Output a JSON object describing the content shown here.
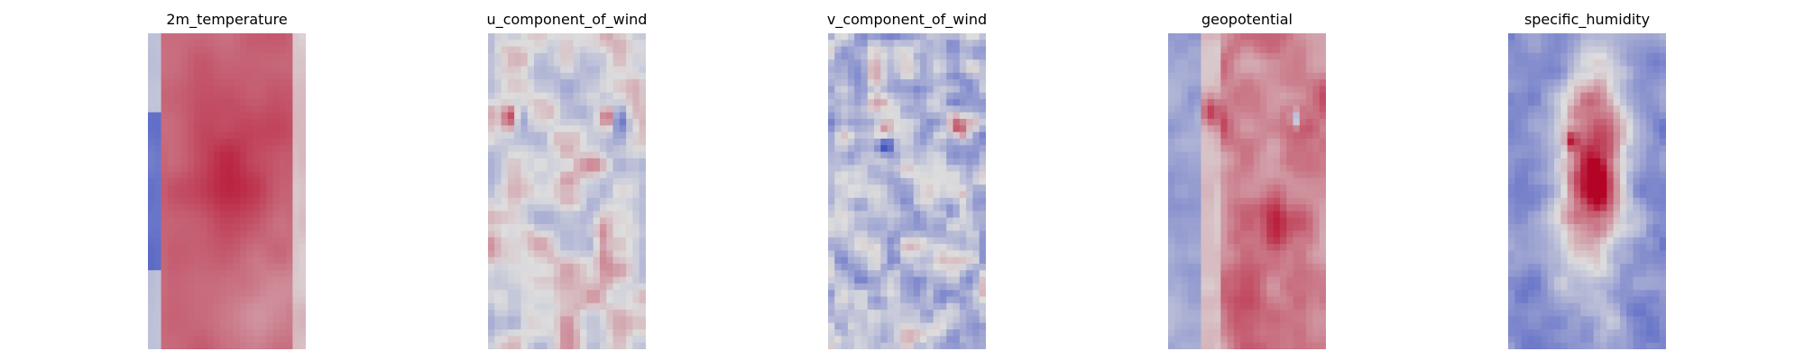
{
  "chart_data": [
    {
      "type": "heatmap",
      "title": "2m_temperature",
      "colormap": "coolwarm",
      "axes": "off",
      "description_pattern": "warm"
    },
    {
      "type": "heatmap",
      "title": "u_component_of_wind",
      "colormap": "coolwarm",
      "axes": "off",
      "description_pattern": "uwind"
    },
    {
      "type": "heatmap",
      "title": "v_component_of_wind",
      "colormap": "coolwarm",
      "axes": "off",
      "description_pattern": "vwind"
    },
    {
      "type": "heatmap",
      "title": "geopotential",
      "colormap": "coolwarm",
      "axes": "off",
      "description_pattern": "geo"
    },
    {
      "type": "heatmap",
      "title": "specific_humidity",
      "colormap": "coolwarm",
      "axes": "off",
      "description_pattern": "humid"
    }
  ],
  "colors": {
    "cold": "#3b4cc0",
    "neutral": "#dddddd",
    "warm": "#b40426"
  }
}
